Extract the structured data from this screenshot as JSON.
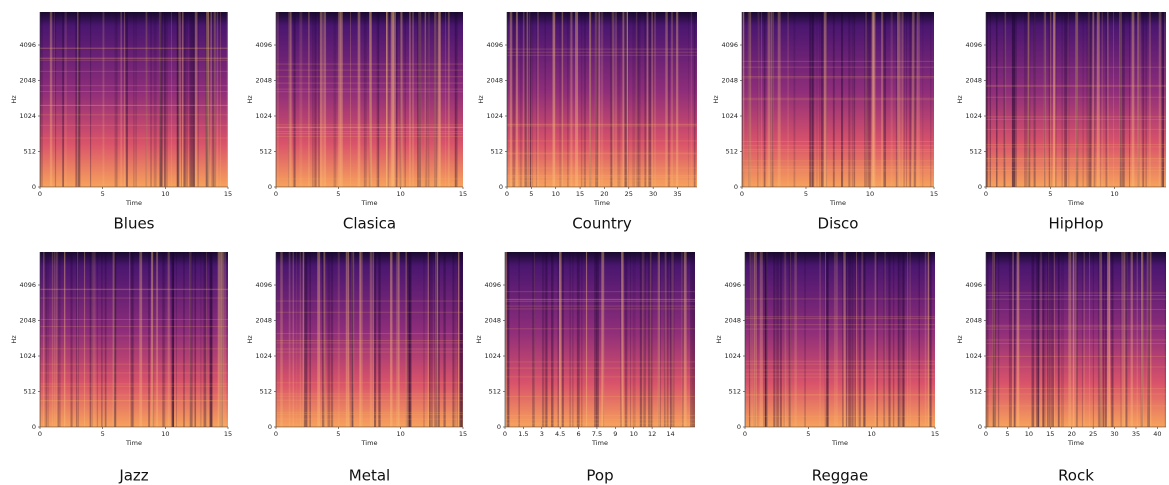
{
  "panels": [
    {
      "label": "Blues",
      "ylabel": "Hz",
      "xlabel": "Time",
      "yticks": [
        0,
        512,
        1024,
        2048,
        4096
      ],
      "xticks": [
        0,
        5,
        10,
        15
      ],
      "xlim": [
        0,
        15
      ]
    },
    {
      "label": "Clasica",
      "ylabel": "Hz",
      "xlabel": "Time",
      "yticks": [
        0,
        512,
        1024,
        2048,
        4096
      ],
      "xticks": [
        0,
        5,
        10,
        15
      ],
      "xlim": [
        0,
        15
      ]
    },
    {
      "label": "Country",
      "ylabel": "Hz",
      "xlabel": "Time",
      "yticks": [
        0,
        512,
        1024,
        2048,
        4096
      ],
      "xticks": [
        0,
        5,
        10,
        15,
        20,
        25,
        30,
        35
      ],
      "xlim": [
        0,
        39
      ]
    },
    {
      "label": "Disco",
      "ylabel": "Hz",
      "xlabel": "Time",
      "yticks": [
        0,
        512,
        1024,
        2048,
        4096
      ],
      "xticks": [
        0,
        5,
        10,
        15
      ],
      "xlim": [
        0,
        15
      ]
    },
    {
      "label": "HipHop",
      "ylabel": "Hz",
      "xlabel": "Time",
      "yticks": [
        0,
        512,
        1024,
        2048,
        4096
      ],
      "xticks": [
        0,
        5,
        10
      ],
      "xlim": [
        0,
        14
      ]
    },
    {
      "label": "Jazz",
      "ylabel": "Hz",
      "xlabel": "Time",
      "yticks": [
        0,
        512,
        1024,
        2048,
        4096
      ],
      "xticks": [
        0,
        5,
        10,
        15
      ],
      "xlim": [
        0,
        15
      ]
    },
    {
      "label": "Metal",
      "ylabel": "Hz",
      "xlabel": "Time",
      "yticks": [
        0,
        512,
        1024,
        2048,
        4096
      ],
      "xticks": [
        0,
        5,
        10,
        15
      ],
      "xlim": [
        0,
        15
      ]
    },
    {
      "label": "Pop",
      "ylabel": "Hz",
      "xlabel": "Time",
      "yticks": [
        0,
        512,
        1024,
        2048,
        4096
      ],
      "xticks": [
        0,
        1.5,
        3,
        4.5,
        6,
        7.5,
        9,
        {
          "value": 10.5,
          "label": "10"
        },
        12,
        {
          "value": 13.5,
          "label": "14"
        }
      ],
      "xlim": [
        0,
        15.5
      ]
    },
    {
      "label": "Reggae",
      "ylabel": "Hz",
      "xlabel": "Time",
      "yticks": [
        0,
        512,
        1024,
        2048,
        4096
      ],
      "xticks": [
        0,
        5,
        10,
        15
      ],
      "xlim": [
        0,
        15
      ]
    },
    {
      "label": "Rock",
      "ylabel": "Hz",
      "xlabel": "Time",
      "yticks": [
        0,
        512,
        1024,
        2048,
        4096
      ],
      "xticks": [
        0,
        5,
        10,
        15,
        20,
        25,
        30,
        35,
        40
      ],
      "xlim": [
        0,
        42
      ]
    }
  ]
}
